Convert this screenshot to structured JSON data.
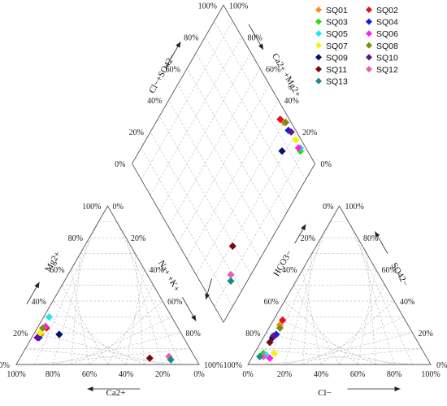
{
  "chart_data": {
    "type": "scatter",
    "subtype": "piper-trilinear",
    "tick_labels": [
      "0%",
      "20%",
      "40%",
      "60%",
      "80%",
      "100%"
    ],
    "axes": {
      "cation": {
        "ca": "Ca2+",
        "mg": "Mg2+",
        "na_k": "Na+ +K+"
      },
      "anion": {
        "cl": "Cl−",
        "so4": "SO42−",
        "hco3": "HCO3−"
      },
      "diamond": {
        "cl_so4": "Cl−+SO42−",
        "ca_mg": "Ca2+ +Mg2+"
      }
    },
    "legend_position": "top-right",
    "grid": true,
    "series": [
      {
        "name": "SQ01",
        "color": "#ff8c1a",
        "shape": "diamond",
        "cation": {
          "ca": 77,
          "mg": 19
        },
        "anion": {
          "so4": 25,
          "cl": 5
        },
        "diamond": {
          "cl_so4": 30,
          "ca_mg": 96
        }
      },
      {
        "name": "SQ02",
        "color": "#e8101c",
        "shape": "diamond",
        "cation": {
          "ca": 72,
          "mg": 23
        },
        "anion": {
          "so4": 28,
          "cl": 5
        },
        "diamond": {
          "cl_so4": 33,
          "ca_mg": 95
        }
      },
      {
        "name": "SQ03",
        "color": "#22e000",
        "shape": "diamond",
        "cation": {
          "ca": 72,
          "mg": 24
        },
        "anion": {
          "so4": 7,
          "cl": 5
        },
        "diamond": {
          "cl_so4": 12,
          "ca_mg": 96
        }
      },
      {
        "name": "SQ04",
        "color": "#0a20e8",
        "shape": "diamond",
        "cation": {
          "ca": 79,
          "mg": 17
        },
        "anion": {
          "so4": 19,
          "cl": 6
        },
        "diamond": {
          "cl_so4": 25,
          "ca_mg": 96
        }
      },
      {
        "name": "SQ05",
        "color": "#20e6f0",
        "shape": "diamond",
        "cation": {
          "ca": 67,
          "mg": 30
        },
        "anion": {
          "so4": 6,
          "cl": 7
        },
        "diamond": {
          "cl_so4": 13,
          "ca_mg": 97
        }
      },
      {
        "name": "SQ06",
        "color": "#ff22ee",
        "shape": "diamond",
        "cation": {
          "ca": 72,
          "mg": 24
        },
        "anion": {
          "so4": 4,
          "cl": 10
        },
        "diamond": {
          "cl_so4": 14,
          "ca_mg": 96
        }
      },
      {
        "name": "SQ07",
        "color": "#f2f212",
        "shape": "diamond",
        "cation": {
          "ca": 77,
          "mg": 20
        },
        "anion": {
          "so4": 7,
          "cl": 11
        },
        "diamond": {
          "cl_so4": 18,
          "ca_mg": 97
        }
      },
      {
        "name": "SQ08",
        "color": "#808a12",
        "shape": "diamond",
        "cation": {
          "ca": 74,
          "mg": 23
        },
        "anion": {
          "so4": 23,
          "cl": 6
        },
        "diamond": {
          "cl_so4": 29,
          "ca_mg": 97
        }
      },
      {
        "name": "SQ09",
        "color": "#05106a",
        "shape": "diamond",
        "cation": {
          "ca": 67,
          "mg": 19
        },
        "anion": {
          "so4": 17,
          "cl": 5
        },
        "diamond": {
          "cl_so4": 22,
          "ca_mg": 86
        }
      },
      {
        "name": "SQ10",
        "color": "#6a1090",
        "shape": "diamond",
        "cation": {
          "ca": 80,
          "mg": 17
        },
        "anion": {
          "so4": 18,
          "cl": 5
        },
        "diamond": {
          "cl_so4": 23,
          "ca_mg": 97
        }
      },
      {
        "name": "SQ11",
        "color": "#7a0a0a",
        "shape": "diamond",
        "cation": {
          "ca": 25,
          "mg": 4
        },
        "anion": {
          "so4": 14,
          "cl": 5
        },
        "diamond": {
          "cl_so4": 19,
          "ca_mg": 29
        }
      },
      {
        "name": "SQ12",
        "color": "#f05ab0",
        "shape": "diamond",
        "cation": {
          "ca": 14,
          "mg": 5
        },
        "anion": {
          "so4": 5,
          "cl": 6
        },
        "diamond": {
          "cl_so4": 11,
          "ca_mg": 19
        }
      },
      {
        "name": "SQ13",
        "color": "#1a8a8a",
        "shape": "diamond",
        "cation": {
          "ca": 14,
          "mg": 3
        },
        "anion": {
          "so4": 5,
          "cl": 4
        },
        "diamond": {
          "cl_so4": 9,
          "ca_mg": 17
        }
      }
    ]
  }
}
